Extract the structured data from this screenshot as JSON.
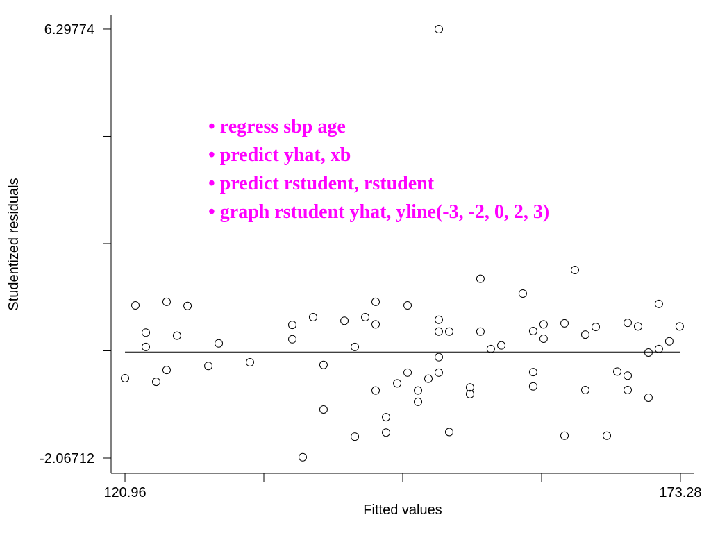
{
  "chart_data": {
    "type": "scatter",
    "x_label": "Fitted values",
    "y_label": "Studentized residuals",
    "annotations": [
      "• regress sbp age",
      "• predict yhat,  xb",
      "• predict rstudent, rstudent",
      "• graph rstudent yhat, yline(-3, -2, 0, 2, 3)"
    ],
    "annotation_color": "#ff00ff",
    "color": "#000000",
    "hline": 0,
    "xlim": [
      119.65,
      174.59
    ],
    "ylim": [
      -2.365,
      6.568
    ],
    "xticks": [
      120.96,
      173.28
    ],
    "xticks_minor": [
      134.04,
      147.12,
      160.2
    ],
    "yticks": [
      -2.06712,
      6.29774
    ],
    "yticks_minor": [
      0.0241,
      2.1153,
      4.2065
    ],
    "x": [
      120.96,
      121.94,
      122.92,
      122.92,
      123.9,
      124.88,
      124.88,
      125.86,
      126.85,
      128.81,
      129.79,
      132.73,
      136.72,
      136.72,
      137.7,
      138.68,
      139.66,
      139.66,
      141.63,
      142.61,
      142.61,
      143.59,
      144.57,
      144.57,
      144.57,
      145.55,
      145.55,
      146.6,
      147.58,
      147.58,
      148.56,
      148.56,
      149.54,
      150.52,
      150.52,
      150.52,
      150.52,
      150.52,
      151.5,
      151.5,
      153.46,
      153.46,
      154.44,
      154.44,
      155.42,
      156.41,
      158.43,
      159.41,
      159.41,
      159.41,
      160.39,
      160.39,
      162.36,
      162.36,
      163.34,
      164.32,
      164.32,
      165.3,
      166.35,
      167.33,
      168.31,
      168.31,
      168.31,
      169.29,
      170.27,
      170.27,
      171.25,
      171.25,
      172.23,
      173.21
    ],
    "values": [
      -0.51,
      0.91,
      0.38,
      0.1,
      -0.58,
      0.98,
      -0.35,
      0.32,
      0.9,
      -0.27,
      0.17,
      -0.2,
      0.53,
      0.25,
      -2.05,
      0.68,
      -0.25,
      -1.12,
      0.61,
      0.1,
      -1.65,
      0.68,
      0.98,
      0.54,
      -0.75,
      -1.27,
      -1.57,
      -0.61,
      0.91,
      -0.4,
      -0.75,
      -0.97,
      -0.52,
      6.29774,
      0.63,
      0.4,
      -0.1,
      -0.4,
      0.4,
      -1.56,
      -0.69,
      -0.82,
      1.43,
      0.4,
      0.06,
      0.13,
      1.14,
      0.41,
      -0.39,
      -0.67,
      0.54,
      0.26,
      0.56,
      -1.63,
      1.6,
      0.34,
      -0.74,
      0.49,
      -1.63,
      -0.38,
      0.57,
      -0.46,
      -0.74,
      0.5,
      -0.01,
      -0.89,
      0.94,
      0.06,
      0.21,
      0.5
    ]
  }
}
